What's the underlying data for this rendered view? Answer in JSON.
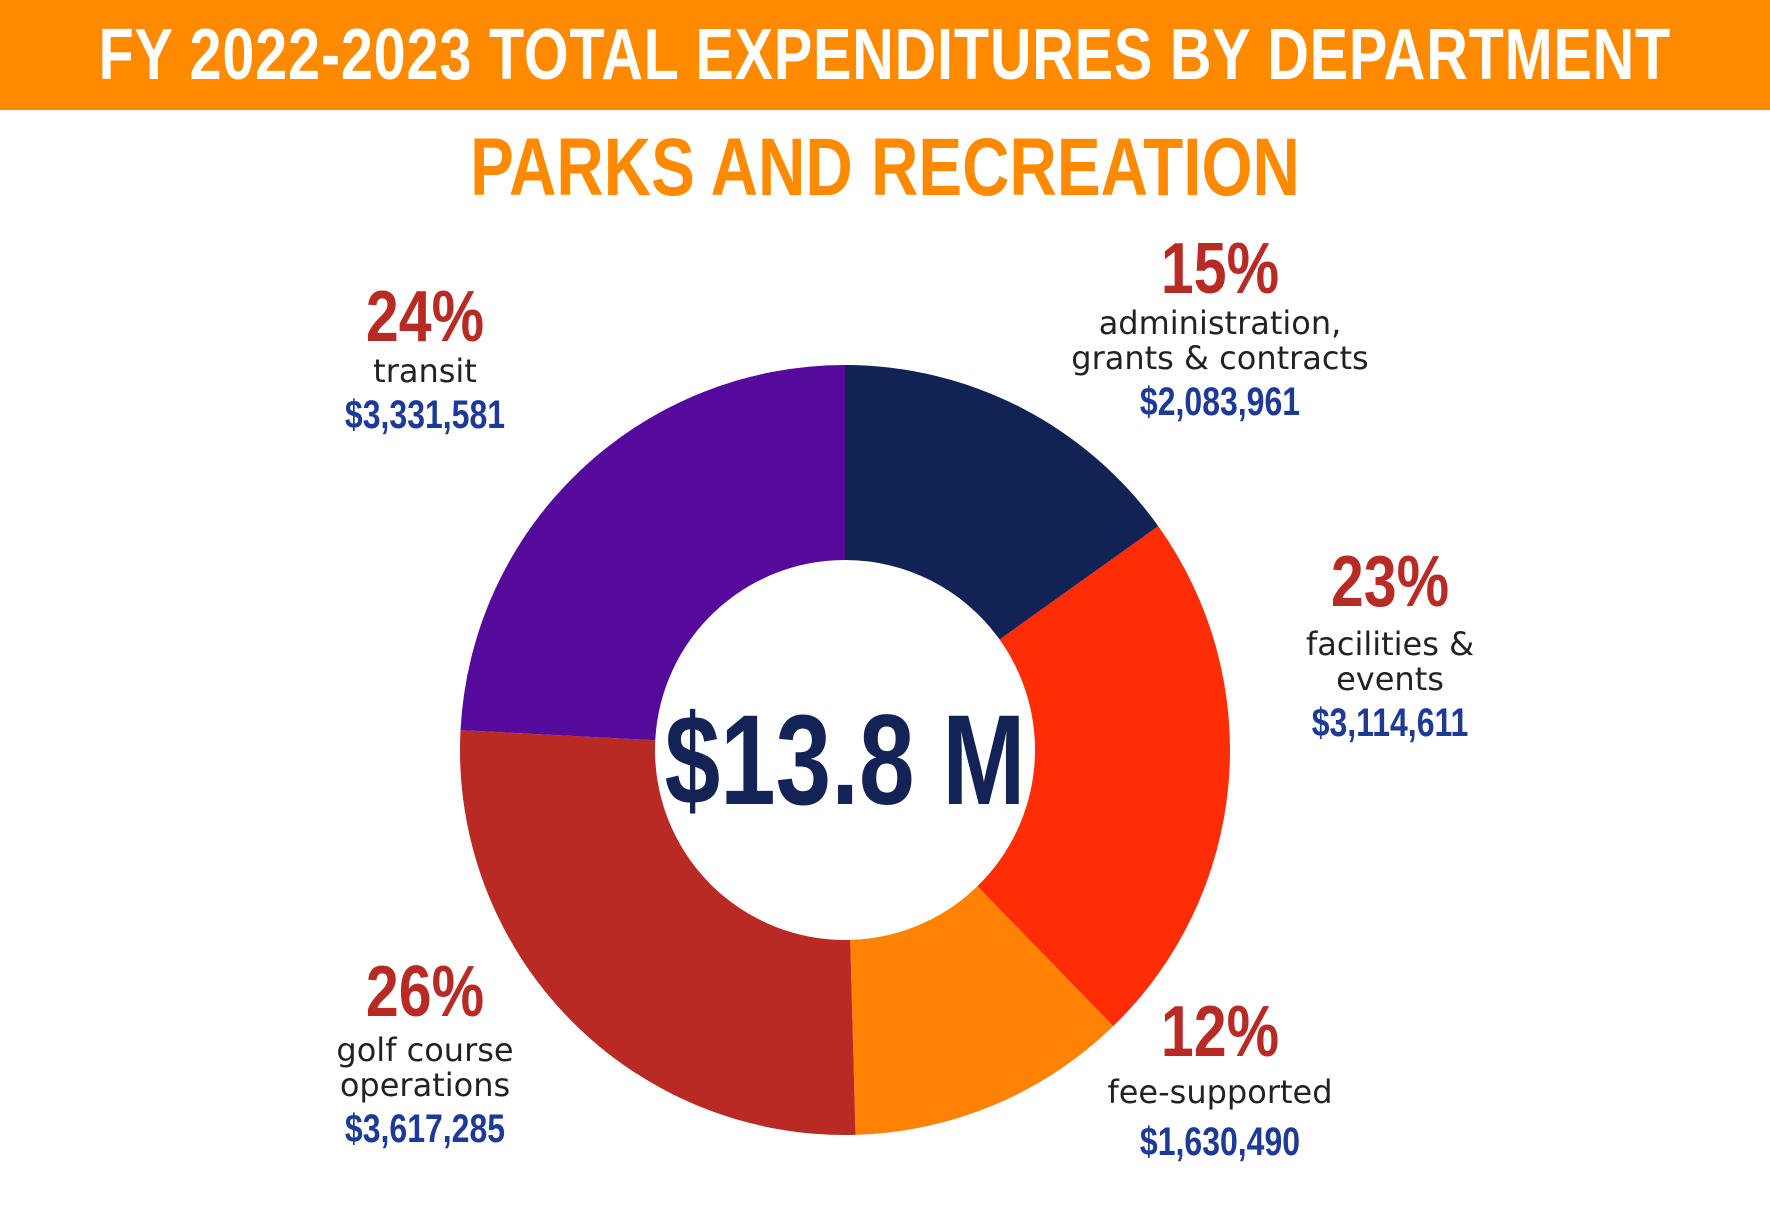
{
  "header": {
    "title": "FY 2022-2023 TOTAL EXPENDITURES BY DEPARTMENT",
    "subtitle": "PARKS AND RECREATION"
  },
  "chart_data": {
    "type": "pie",
    "variant": "donut",
    "title": "FY 2022-2023 TOTAL EXPENDITURES BY DEPARTMENT",
    "subtitle": "PARKS AND RECREATION",
    "center_label": "$13.8 M",
    "slices": [
      {
        "key": "admin",
        "percent_label": "15%",
        "name_lines": [
          "administration,",
          "grants & contracts"
        ],
        "amount_label": "$2,083,961",
        "value": 2083961,
        "color": "#112254"
      },
      {
        "key": "facilities",
        "percent_label": "23%",
        "name_lines": [
          "facilities &",
          "events"
        ],
        "amount_label": "$3,114,611",
        "value": 3114611,
        "color": "#ff2d05"
      },
      {
        "key": "fee",
        "percent_label": "12%",
        "name_lines": [
          "fee-supported"
        ],
        "amount_label": "$1,630,490",
        "value": 1630490,
        "color": "#ff8205"
      },
      {
        "key": "golf",
        "percent_label": "26%",
        "name_lines": [
          "golf course",
          "operations"
        ],
        "amount_label": "$3,617,285",
        "value": 3617285,
        "color": "#ba2a24"
      },
      {
        "key": "transit",
        "percent_label": "24%",
        "name_lines": [
          "transit"
        ],
        "amount_label": "$3,331,581",
        "value": 3331581,
        "color": "#560a9c"
      }
    ]
  },
  "colors": {
    "header_bg": "#ff8a00",
    "header_text": "#ffffff",
    "subtitle": "#ff8a00",
    "percent": "#b82a24",
    "amount": "#1d3a99",
    "center_total": "#142356"
  }
}
